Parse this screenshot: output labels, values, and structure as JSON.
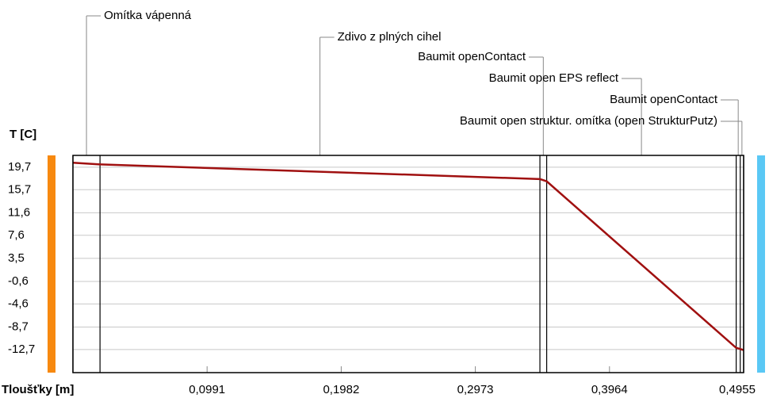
{
  "chart_data": {
    "type": "line",
    "ylabel": "T [C]",
    "xlabel": "Tloušťky [m]",
    "x": [
      0,
      0.02,
      0.345,
      0.35,
      0.49,
      0.493,
      0.4955
    ],
    "values": [
      20.5,
      20.2,
      17.6,
      17.2,
      -12.4,
      -12.6,
      -12.8
    ],
    "color": "#a01010",
    "xlim": [
      0,
      0.4955
    ],
    "xticks": [
      {
        "value": 0.0991,
        "label": "0,0991"
      },
      {
        "value": 0.1982,
        "label": "0,1982"
      },
      {
        "value": 0.2973,
        "label": "0,2973"
      },
      {
        "value": 0.3964,
        "label": "0,3964"
      },
      {
        "value": 0.4955,
        "label": "0,4955"
      }
    ],
    "ylim": [
      -16.8,
      21.8
    ],
    "yticks": [
      {
        "value": 19.7,
        "label": "19,7"
      },
      {
        "value": 15.7,
        "label": "15,7"
      },
      {
        "value": 11.6,
        "label": "11,6"
      },
      {
        "value": 7.6,
        "label": "7,6"
      },
      {
        "value": 3.5,
        "label": "3,5"
      },
      {
        "value": -0.6,
        "label": "-0,6"
      },
      {
        "value": -4.6,
        "label": "-4,6"
      },
      {
        "value": -8.7,
        "label": "-8,7"
      },
      {
        "value": -12.7,
        "label": "-12,7"
      }
    ],
    "grid": true,
    "layer_boundaries": [
      0,
      0.02,
      0.345,
      0.35,
      0.49,
      0.493,
      0.4955
    ],
    "annotations": [
      "Omítka vápenná",
      "Zdivo z plných cihel",
      "Baumit openContact",
      "Baumit open EPS reflect",
      "Baumit openContact",
      "Baumit open struktur. omítka (open StrukturPutz)"
    ],
    "inside_color": "#f7890f",
    "outside_color": "#5ac8f5"
  }
}
